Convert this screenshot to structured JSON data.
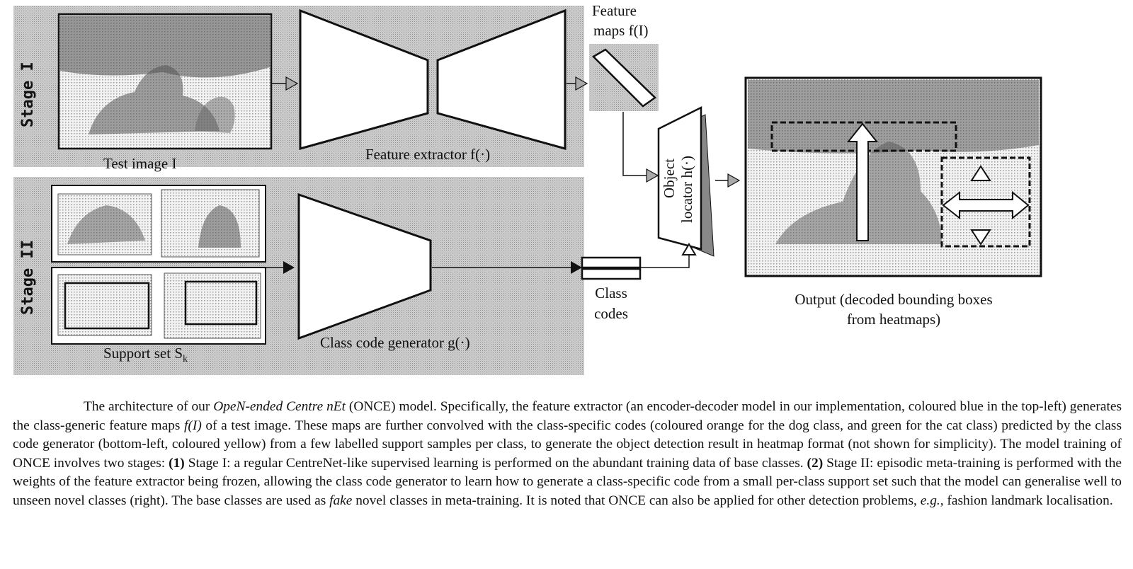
{
  "figure": {
    "stage1_label": "Stage I",
    "stage2_label": "Stage II",
    "test_image_label": "Test image I",
    "feature_extractor_label": "Feature extractor f(·)",
    "feature_maps_line1": "Feature",
    "feature_maps_line2": "maps f(I)",
    "object_locator_line1": "Object",
    "object_locator_line2": "locator h(·)",
    "support_set_label": "Support set S",
    "support_set_subscript": "k",
    "class_code_generator_label": "Class code generator g(·)",
    "class_codes_line1": "Class",
    "class_codes_line2": "codes",
    "output_line1": "Output (decoded bounding boxes",
    "output_line2": "from heatmaps)"
  },
  "caption": {
    "p1": "The architecture of our ",
    "p1_italic": "OpeN-ended Centre nEt",
    "p2": " (ONCE) model. Specifically, the feature extractor (an encoder-decoder model in our implementation, coloured blue in the top-left) generates the class-generic feature maps ",
    "p2_math": "f(I)",
    "p3": " of a test image. These maps are further convolved with the class-specific codes (coloured orange for the dog class, and green for the cat class) predicted by the class code generator (bottom-left, coloured yellow) from a few labelled support samples per class, to generate the object detection result in heatmap format (not shown for simplicity). The model training of ONCE involves two stages: ",
    "p3_bold": "(1)",
    "p4": " Stage I: a regular CentreNet-like supervised learning is performed on the abundant training data of base classes. ",
    "p4_bold": "(2)",
    "p5": " Stage II: episodic meta-training is performed with the weights of the feature extractor being frozen, allowing the class code generator to learn how to generate a class-specific code from a small per-class support set such that the model can generalise well to unseen novel classes (right). The base classes are used as ",
    "p5_italic": "fake",
    "p6": " novel classes in meta-training. It is noted that ONCE can also be applied for other detection problems, ",
    "p6_italic": "e.g.",
    "p7": ", fashion landmark localisation."
  }
}
